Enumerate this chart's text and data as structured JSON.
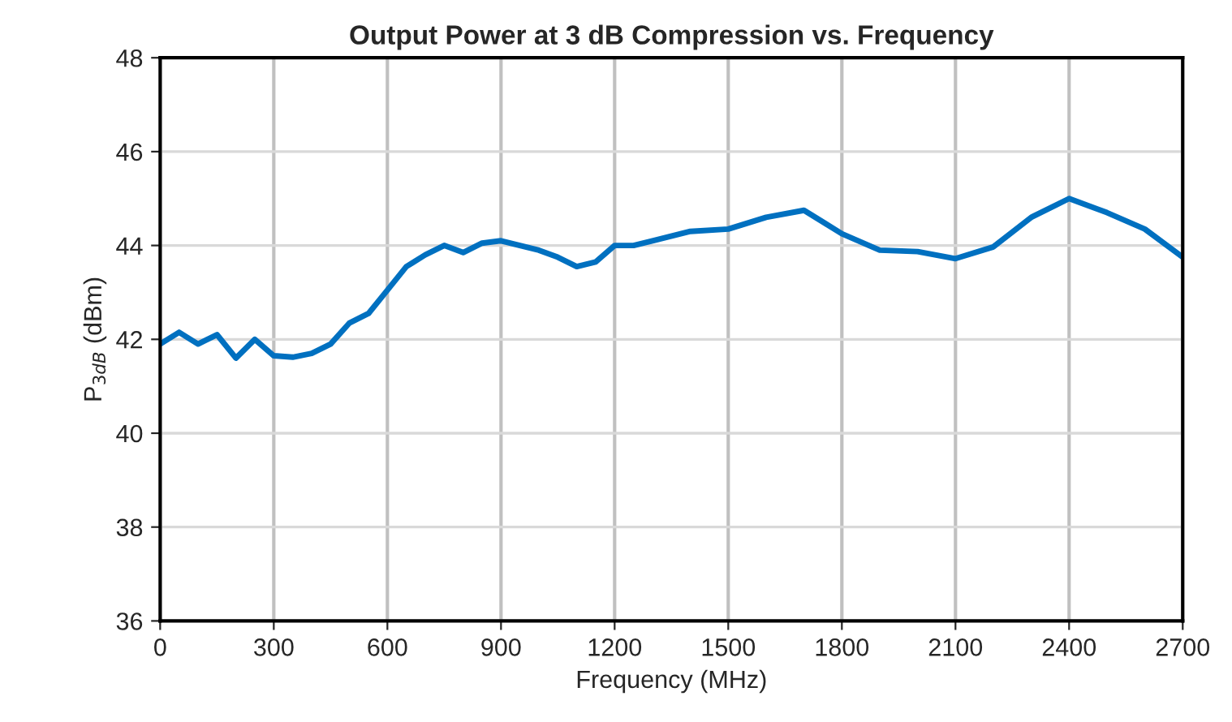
{
  "chart_data": {
    "type": "line",
    "title": "Output Power at 3 dB Compression vs. Frequency",
    "xlabel": "Frequency (MHz)",
    "ylabel": "P$_{3dB}$ (dBm)",
    "x": [
      0,
      50,
      100,
      150,
      200,
      250,
      300,
      350,
      400,
      450,
      500,
      550,
      600,
      650,
      700,
      750,
      800,
      850,
      900,
      950,
      1000,
      1050,
      1100,
      1150,
      1200,
      1250,
      1300,
      1400,
      1500,
      1600,
      1700,
      1800,
      1900,
      2000,
      2100,
      2200,
      2300,
      2400,
      2500,
      2600,
      2700
    ],
    "series": [
      {
        "color": "#0070c0",
        "values": [
          41.9,
          42.15,
          41.9,
          42.1,
          41.6,
          42.0,
          41.65,
          41.62,
          41.7,
          41.9,
          42.35,
          42.55,
          43.05,
          43.55,
          43.8,
          44.0,
          43.85,
          44.05,
          44.1,
          44.0,
          43.9,
          43.75,
          43.55,
          43.65,
          44.0,
          44.0,
          44.1,
          44.3,
          44.35,
          44.6,
          44.75,
          44.25,
          43.9,
          43.87,
          43.72,
          43.97,
          44.6,
          45.0,
          44.7,
          44.35,
          43.75
        ]
      }
    ],
    "xlim": [
      0,
      2700
    ],
    "xticks": [
      0,
      300,
      600,
      900,
      1200,
      1500,
      1800,
      2100,
      2400,
      2700
    ],
    "ylim": [
      36,
      48
    ],
    "yticks": [
      36,
      38,
      40,
      42,
      44,
      46,
      48
    ],
    "grid": true,
    "marker": "none",
    "line_style": "solid"
  }
}
